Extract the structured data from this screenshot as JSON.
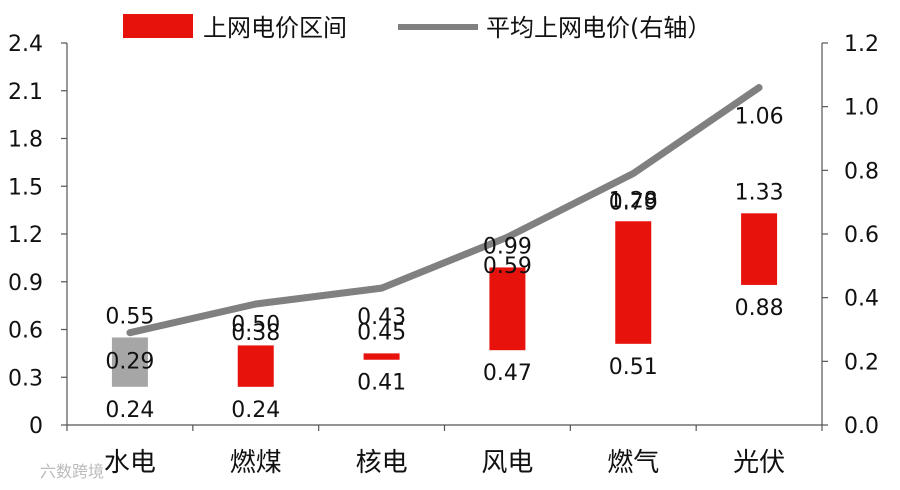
{
  "chart_data": {
    "type": "bar",
    "categories": [
      "水电",
      "燃煤",
      "核电",
      "风电",
      "燃气",
      "光伏"
    ],
    "series": [
      {
        "name": "上网电价区间",
        "kind": "floating-bar",
        "axis": "left",
        "low": [
          0.24,
          0.24,
          0.41,
          0.47,
          0.51,
          0.88
        ],
        "high": [
          0.55,
          0.5,
          0.45,
          0.99,
          1.28,
          1.33
        ],
        "colors": [
          "#a6a6a6",
          "#e8120c",
          "#e8120c",
          "#e8120c",
          "#e8120c",
          "#e8120c"
        ]
      },
      {
        "name": "平均上网电价(右轴）",
        "kind": "line",
        "axis": "right",
        "values": [
          0.29,
          0.38,
          0.43,
          0.59,
          0.79,
          1.06
        ],
        "color": "#808080"
      }
    ],
    "y_left": {
      "ylim": [
        0,
        2.4
      ],
      "ticks": [
        "0",
        "0.3",
        "0.6",
        "0.9",
        "1.2",
        "1.5",
        "1.8",
        "2.1",
        "2.4"
      ]
    },
    "y_right": {
      "ylim": [
        0,
        1.2
      ],
      "ticks": [
        "0.0",
        "0.2",
        "0.4",
        "0.6",
        "0.8",
        "1.0",
        "1.2"
      ]
    },
    "low_labels": [
      "0.24",
      "0.24",
      "0.41",
      "0.47",
      "0.51",
      "0.88"
    ],
    "high_labels": [
      "0.55",
      "0.50",
      "0.45",
      "0.99",
      "1.28",
      "1.33"
    ],
    "avg_labels": [
      "0.29",
      "0.38",
      "0.43",
      "0.59",
      "0.79",
      "1.06"
    ],
    "legend": {
      "position": "top",
      "items": [
        "上网电价区间",
        "平均上网电价(右轴）"
      ]
    },
    "grid": false
  },
  "watermark": "六数跨境"
}
